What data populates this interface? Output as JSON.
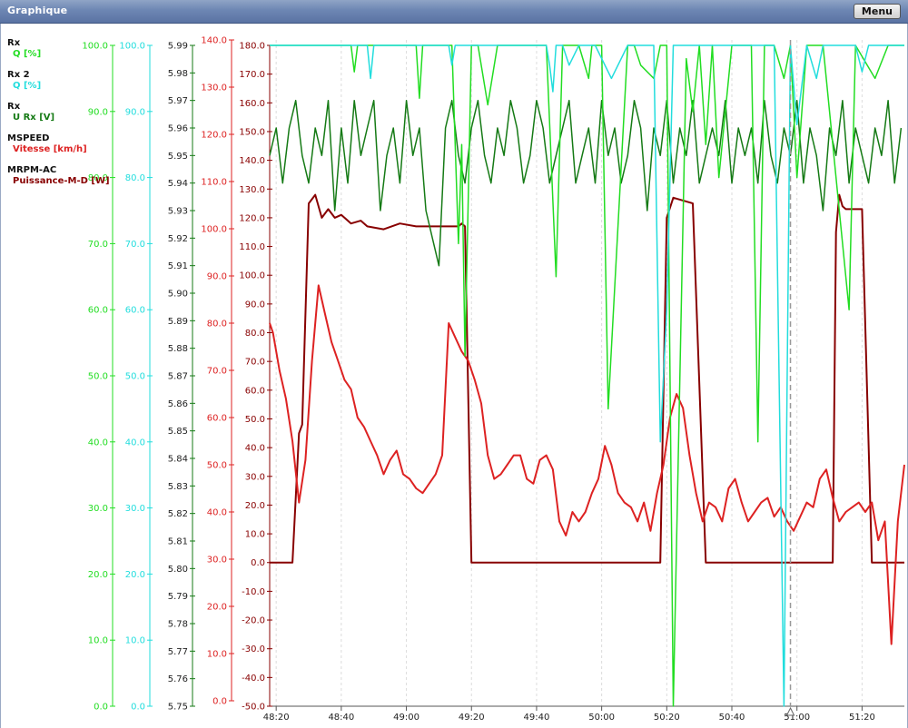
{
  "window": {
    "title": "Graphique",
    "menu_label": "Menu"
  },
  "chart_data": {
    "type": "line",
    "x_unit": "time (mm:ss)",
    "x_range": [
      "48:18",
      "51:33"
    ],
    "x_ticks": [
      "48:20",
      "48:40",
      "49:00",
      "49:20",
      "49:40",
      "50:00",
      "50:20",
      "50:40",
      "51:00",
      "51:20"
    ],
    "cursor_time": "50:58",
    "grid": "vertical",
    "legend_placement": "left",
    "axes": [
      {
        "id": "q1",
        "color": "#22dd22",
        "min": 0,
        "max": 100,
        "ticks": [
          0,
          10,
          20,
          30,
          40,
          50,
          60,
          70,
          80,
          90,
          100
        ],
        "decimals": 1
      },
      {
        "id": "q2",
        "color": "#22dddd",
        "min": 0,
        "max": 100,
        "ticks": [
          0,
          10,
          20,
          30,
          40,
          50,
          60,
          70,
          80,
          90,
          100
        ],
        "decimals": 1
      },
      {
        "id": "urx",
        "color": "#157a15",
        "min": 5.75,
        "max": 5.99,
        "ticks": [
          5.75,
          5.76,
          5.77,
          5.78,
          5.79,
          5.8,
          5.81,
          5.82,
          5.83,
          5.84,
          5.85,
          5.86,
          5.87,
          5.88,
          5.89,
          5.9,
          5.91,
          5.92,
          5.93,
          5.94,
          5.95,
          5.96,
          5.97,
          5.98,
          5.99
        ],
        "decimals": 2
      },
      {
        "id": "speed",
        "color": "#dd2222",
        "min": 0,
        "max": 140,
        "ticks": [
          0,
          10,
          20,
          30,
          40,
          50,
          60,
          70,
          80,
          90,
          100,
          110,
          120,
          130,
          140
        ],
        "decimals": 1
      },
      {
        "id": "power",
        "color": "#880000",
        "min": -50,
        "max": 180,
        "ticks": [
          -50,
          -40,
          -30,
          -20,
          -10,
          0,
          10,
          20,
          30,
          40,
          50,
          60,
          70,
          80,
          90,
          100,
          110,
          120,
          130,
          140,
          150,
          160,
          170,
          180
        ],
        "decimals": 1
      }
    ],
    "legend": [
      {
        "source": "Rx",
        "label": "Q [%]",
        "color": "#22dd22"
      },
      {
        "source": "Rx 2",
        "label": "Q [%]",
        "color": "#22dddd"
      },
      {
        "source": "Rx",
        "label": "U Rx [V]",
        "color": "#157a15"
      },
      {
        "source": "MSPEED",
        "label": "Vitesse [km/h]",
        "color": "#dd2222"
      },
      {
        "source": "MRPM-AC",
        "label": "Puissance-M-D [W]",
        "color": "#880000"
      }
    ],
    "series": [
      {
        "name": "Puissance-M-D [W]",
        "axis": "power",
        "color": "#880000",
        "width": 2,
        "x": [
          0,
          5,
          7,
          9,
          10,
          12,
          14,
          16,
          18,
          20,
          22,
          25,
          28,
          30,
          35,
          40,
          45,
          50,
          55,
          58,
          59,
          60,
          62,
          64,
          75,
          100,
          119,
          120,
          122,
          124,
          130,
          134,
          137,
          138,
          140,
          155,
          172,
          173,
          174,
          175,
          176,
          177,
          179,
          182,
          185,
          188,
          193,
          195
        ],
        "y": [
          0,
          0,
          0,
          45,
          48,
          125,
          128,
          120,
          123,
          120,
          121,
          118,
          119,
          117,
          116,
          118,
          117,
          117,
          117,
          117,
          118,
          117,
          0,
          0,
          0,
          0,
          0,
          0,
          120,
          127,
          125,
          0,
          0,
          0,
          0,
          0,
          0,
          0,
          115,
          128,
          124,
          123,
          123,
          123,
          0,
          0,
          0,
          0
        ]
      },
      {
        "name": "Vitesse [km/h]",
        "axis": "speed",
        "color": "#dd2222",
        "width": 2,
        "x": [
          0,
          1,
          3,
          5,
          7,
          9,
          11,
          13,
          15,
          17,
          19,
          21,
          23,
          25,
          27,
          29,
          31,
          33,
          35,
          37,
          39,
          41,
          43,
          45,
          47,
          49,
          51,
          53,
          55,
          57,
          59,
          61,
          63,
          65,
          67,
          69,
          71,
          73,
          75,
          77,
          79,
          81,
          83,
          85,
          87,
          89,
          91,
          93,
          95,
          97,
          99,
          101,
          103,
          105,
          107,
          109,
          111,
          113,
          115,
          117,
          119,
          121,
          123,
          125,
          127,
          129,
          131,
          133,
          135,
          137,
          139,
          141,
          143,
          145,
          147,
          149,
          151,
          153,
          155,
          157,
          159,
          161,
          163,
          165,
          167,
          169,
          171,
          173,
          175,
          177,
          179,
          181,
          183,
          185,
          187,
          189,
          191,
          193,
          195
        ],
        "y": [
          80,
          78,
          70,
          64,
          55,
          42,
          51,
          72,
          88,
          82,
          76,
          72,
          68,
          66,
          60,
          58,
          55,
          52,
          48,
          51,
          53,
          48,
          47,
          45,
          44,
          46,
          48,
          52,
          80,
          77,
          74,
          72,
          68,
          63,
          52,
          47,
          48,
          50,
          52,
          52,
          47,
          46,
          51,
          52,
          49,
          38,
          35,
          40,
          38,
          40,
          44,
          47,
          54,
          50,
          44,
          42,
          41,
          38,
          42,
          36,
          44,
          50,
          60,
          65,
          62,
          52,
          44,
          38,
          42,
          41,
          38,
          45,
          47,
          42,
          38,
          40,
          42,
          43,
          39,
          41,
          38,
          36,
          39,
          42,
          41,
          47,
          49,
          43,
          38,
          40,
          41,
          42,
          40,
          42,
          34,
          38,
          12,
          38,
          50
        ]
      },
      {
        "name": "U Rx [V]",
        "axis": "urx",
        "color": "#157a15",
        "width": 1.5,
        "x": [
          0,
          2,
          4,
          6,
          8,
          10,
          12,
          14,
          16,
          18,
          20,
          22,
          24,
          26,
          28,
          30,
          32,
          34,
          36,
          38,
          40,
          42,
          44,
          46,
          48,
          50,
          52,
          54,
          56,
          58,
          60,
          62,
          64,
          66,
          68,
          70,
          72,
          74,
          76,
          78,
          80,
          82,
          84,
          86,
          88,
          90,
          92,
          94,
          96,
          98,
          100,
          102,
          104,
          106,
          108,
          110,
          112,
          114,
          116,
          118,
          120,
          122,
          124,
          126,
          128,
          130,
          132,
          134,
          136,
          138,
          140,
          142,
          144,
          146,
          148,
          150,
          152,
          154,
          156,
          158,
          160,
          162,
          164,
          166,
          168,
          170,
          172,
          174,
          176,
          178,
          180,
          182,
          184,
          186,
          188,
          190,
          192,
          194
        ],
        "y": [
          5.95,
          5.96,
          5.94,
          5.96,
          5.97,
          5.95,
          5.94,
          5.96,
          5.95,
          5.97,
          5.93,
          5.96,
          5.94,
          5.97,
          5.95,
          5.96,
          5.97,
          5.93,
          5.95,
          5.96,
          5.94,
          5.97,
          5.95,
          5.96,
          5.93,
          5.92,
          5.91,
          5.96,
          5.97,
          5.95,
          5.94,
          5.96,
          5.97,
          5.95,
          5.94,
          5.96,
          5.95,
          5.97,
          5.96,
          5.94,
          5.95,
          5.97,
          5.96,
          5.94,
          5.95,
          5.96,
          5.97,
          5.94,
          5.95,
          5.96,
          5.94,
          5.97,
          5.95,
          5.96,
          5.94,
          5.95,
          5.97,
          5.96,
          5.93,
          5.96,
          5.95,
          5.97,
          5.94,
          5.96,
          5.95,
          5.97,
          5.94,
          5.95,
          5.96,
          5.95,
          5.97,
          5.94,
          5.96,
          5.95,
          5.96,
          5.94,
          5.97,
          5.95,
          5.94,
          5.96,
          5.95,
          5.97,
          5.94,
          5.96,
          5.95,
          5.93,
          5.96,
          5.95,
          5.97,
          5.94,
          5.96,
          5.95,
          5.94,
          5.96,
          5.95,
          5.97,
          5.94,
          5.96
        ]
      },
      {
        "name": "Rx Q [%]",
        "axis": "q1",
        "color": "#22dd22",
        "width": 1.5,
        "x": [
          0,
          25,
          26,
          27,
          28,
          45,
          46,
          47,
          50,
          56,
          58,
          59,
          60,
          62,
          64,
          67,
          70,
          75,
          80,
          83,
          85,
          88,
          90,
          95,
          98,
          99,
          100,
          101,
          102,
          104,
          110,
          112,
          114,
          118,
          120,
          122,
          124,
          128,
          130,
          132,
          134,
          136,
          138,
          142,
          148,
          150,
          152,
          155,
          158,
          160,
          162,
          165,
          170,
          178,
          180,
          186,
          190,
          195
        ],
        "y": [
          100,
          100,
          96,
          100,
          100,
          100,
          92,
          100,
          100,
          100,
          70,
          85,
          53,
          100,
          100,
          91,
          100,
          100,
          100,
          100,
          100,
          65,
          100,
          100,
          95,
          100,
          100,
          100,
          100,
          45,
          100,
          100,
          97,
          95,
          100,
          100,
          0,
          98,
          90,
          100,
          85,
          100,
          80,
          100,
          100,
          40,
          100,
          100,
          95,
          100,
          80,
          100,
          100,
          60,
          100,
          95,
          100,
          100
        ]
      },
      {
        "name": "Rx 2 Q [%]",
        "axis": "q2",
        "color": "#22dddd",
        "width": 1.5,
        "x": [
          0,
          30,
          31,
          32,
          33,
          55,
          56,
          57,
          58,
          85,
          86,
          87,
          88,
          90,
          92,
          95,
          100,
          105,
          110,
          115,
          118,
          120,
          122,
          124,
          128,
          130,
          135,
          140,
          145,
          150,
          155,
          158,
          160,
          162,
          165,
          168,
          170,
          175,
          180,
          182,
          184,
          186,
          190,
          192,
          195
        ],
        "y": [
          100,
          100,
          95,
          100,
          100,
          100,
          97,
          100,
          100,
          100,
          97,
          93,
          100,
          100,
          97,
          100,
          100,
          95,
          100,
          100,
          100,
          40,
          60,
          100,
          100,
          100,
          100,
          100,
          100,
          100,
          100,
          0,
          100,
          88,
          100,
          95,
          100,
          100,
          100,
          96,
          100,
          100,
          100,
          100,
          100
        ]
      }
    ]
  }
}
